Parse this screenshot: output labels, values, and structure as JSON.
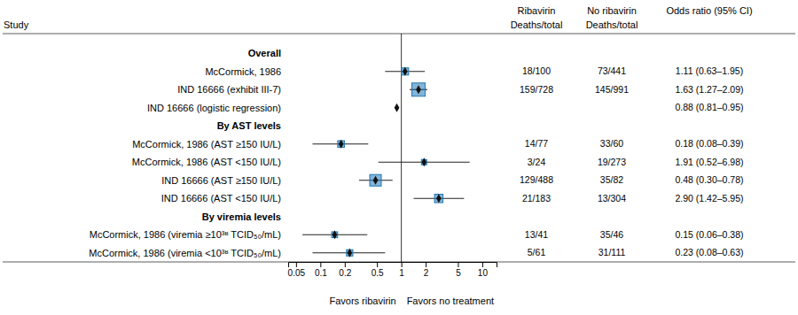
{
  "chart_data": {
    "type": "forest",
    "log": "x",
    "categories": [
      "Overall",
      "McCormick, 1986",
      "IND 16666 (exhibit III-7)",
      "IND 16666 (logistic regression)",
      "By AST levels",
      "McCormick, 1986 (AST ≥150 IU/L)",
      "McCormick, 1986 (AST <150 IU/L)",
      "IND 16666 (AST ≥150 IU/L)",
      "IND 16666 (AST <150 IU/L)",
      "By viremia levels",
      "McCormick, 1986 (viremia ≥10³ʶ TCID₅₀/mL)",
      "McCormick, 1986 (viremia <10³ʶ TCID₅₀/mL)"
    ],
    "values": [
      null,
      1.11,
      1.63,
      0.88,
      null,
      0.18,
      1.91,
      0.48,
      2.9,
      null,
      0.15,
      0.23
    ],
    "value_labels": [
      null,
      "1.11 (0.63–1.95)",
      "1.63 (1.27–2.09)",
      "0.88 (0.81–0.95)",
      null,
      "0.18 (0.08–0.39)",
      "1.91 (0.52–6.98)",
      "0.48 (0.30–0.78)",
      "2.90 (1.42–5.95)",
      null,
      "0.15 (0.06–0.38)",
      "0.23 (0.08–0.63)"
    ],
    "ci_low": [
      null,
      0.63,
      1.27,
      null,
      null,
      0.08,
      0.52,
      0.3,
      1.42,
      null,
      0.06,
      0.08
    ],
    "ci_high": [
      null,
      1.95,
      2.09,
      null,
      null,
      0.39,
      6.98,
      0.78,
      5.95,
      null,
      0.38,
      0.63
    ],
    "box_sizes": [
      null,
      100,
      728,
      0,
      null,
      77,
      24,
      488,
      183,
      null,
      41,
      61
    ],
    "ribavirin": [
      null,
      "18/100",
      "159/728",
      null,
      null,
      "14/77",
      "3/24",
      "129/488",
      "21/183",
      null,
      "13/41",
      "5/61"
    ],
    "no_ribavirin": [
      null,
      "73/441",
      "145/991",
      null,
      null,
      "33/60",
      "19/273",
      "35/82",
      "13/304",
      null,
      "35/46",
      "31/111"
    ],
    "study_header": "Study",
    "ribavirin_header": [
      "Ribavirin",
      "Deaths/total"
    ],
    "no_ribavirin_header": [
      "No ribavirin",
      "Deaths/total"
    ],
    "odds_ratio_header": "Odds ratio (95% CI)",
    "x_label_left": "Favors ribavirin",
    "x_label_right": "Favors no treatment",
    "reference_x": 1,
    "xlim": [
      0.04,
      15.0
    ],
    "xticks": [
      0.05,
      0.1,
      0.2,
      0.5,
      1,
      2,
      5,
      10
    ]
  }
}
